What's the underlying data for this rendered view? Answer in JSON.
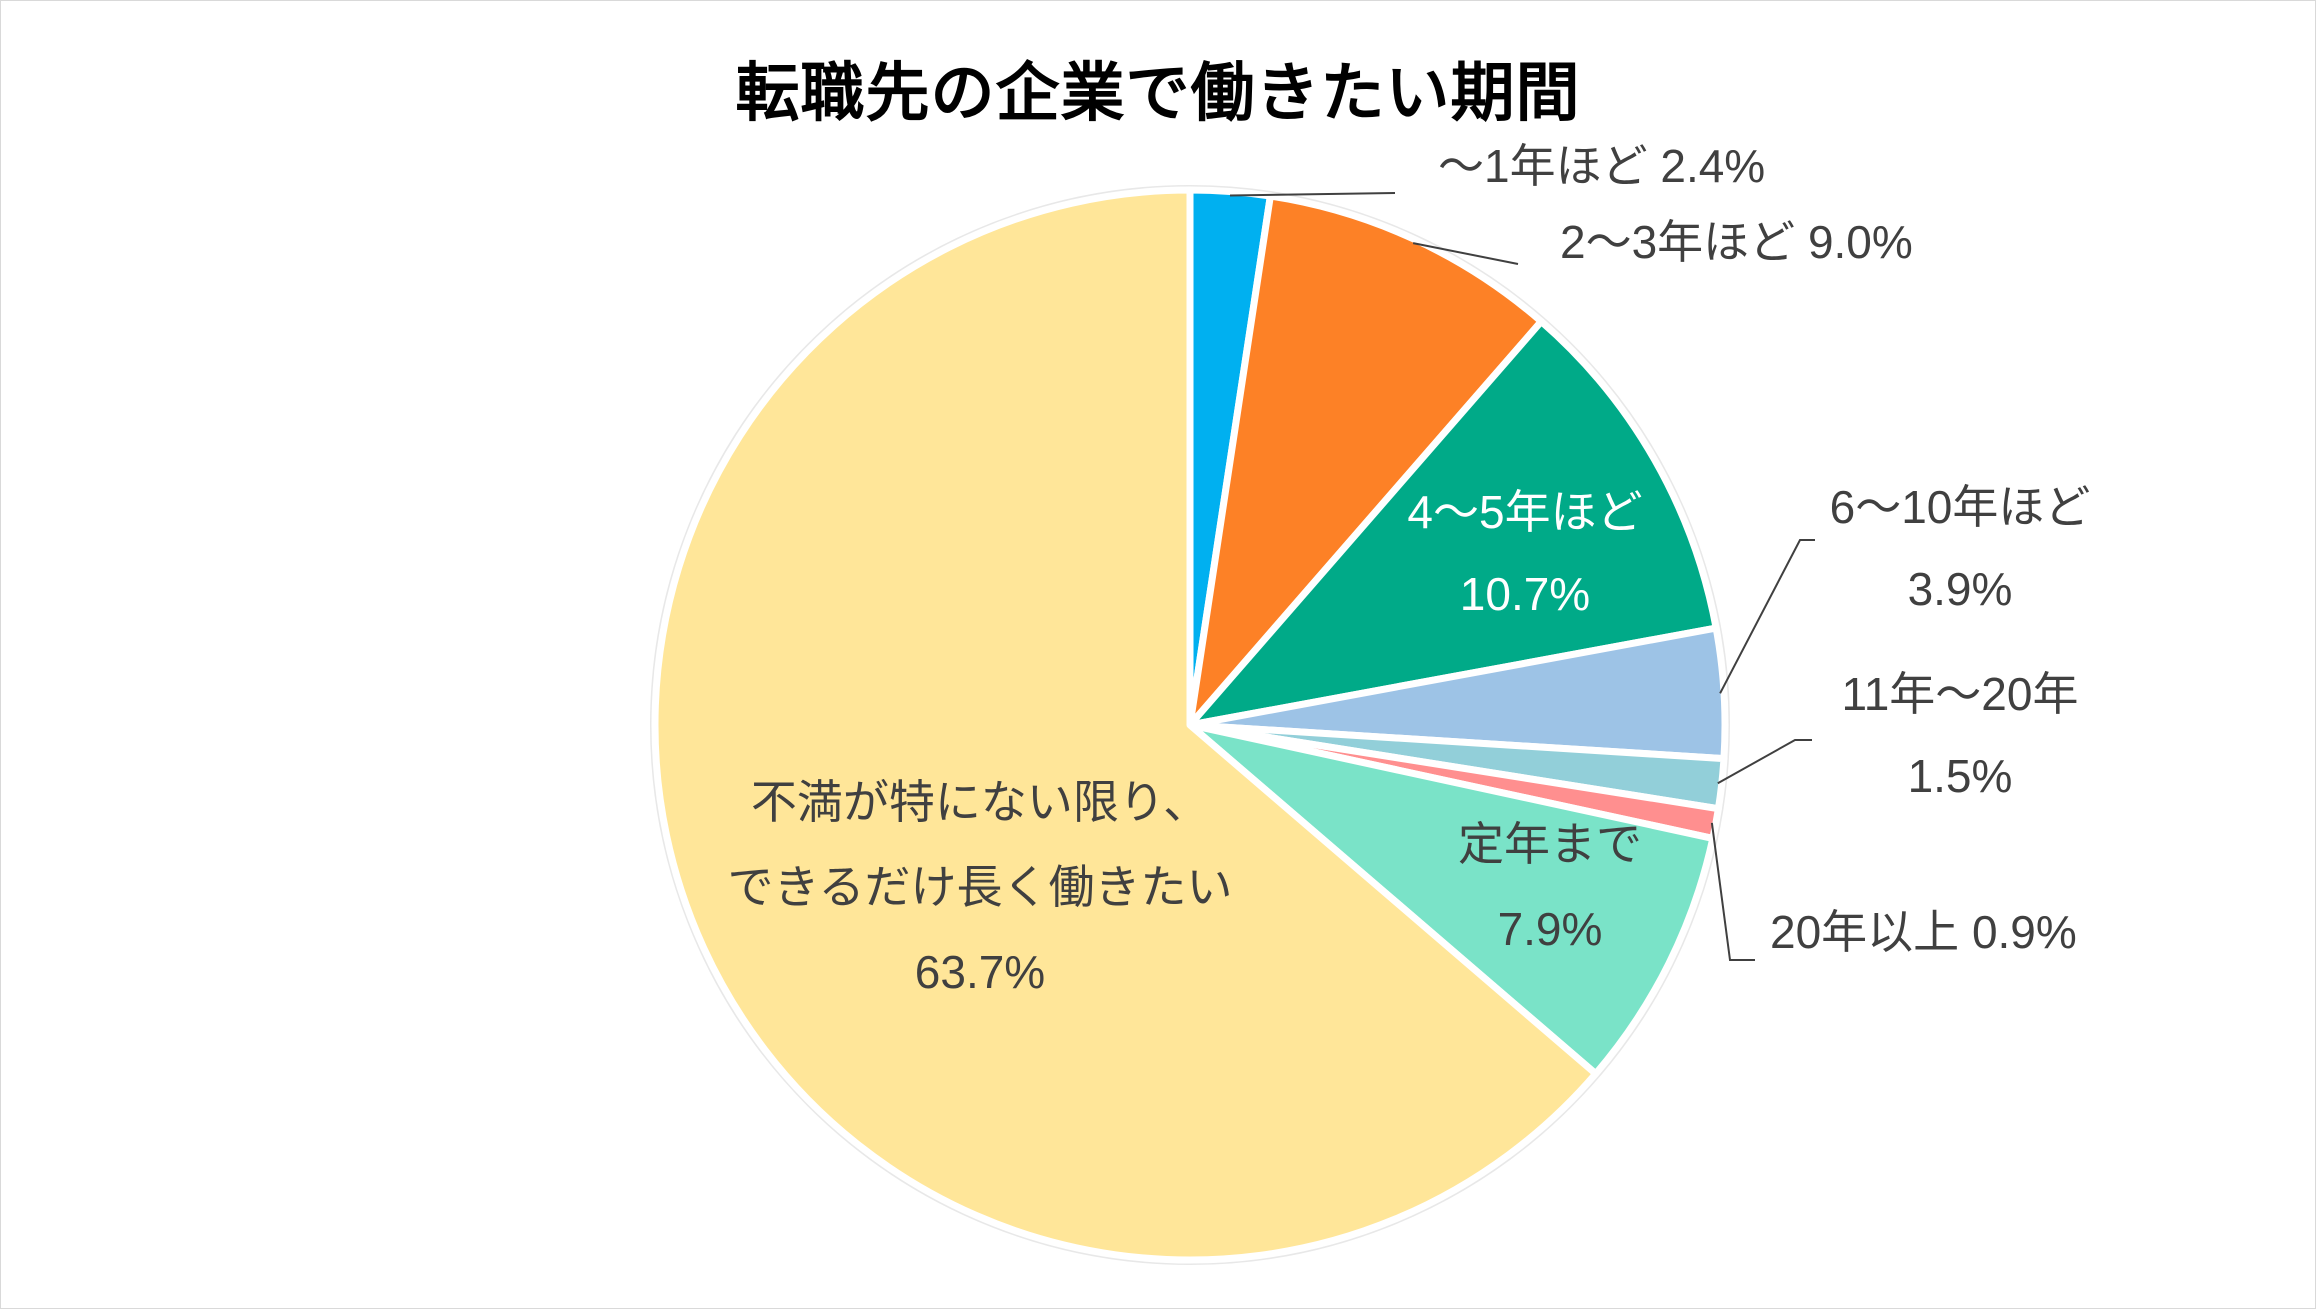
{
  "chart_data": {
    "type": "pie",
    "title": "転職先の企業で働きたい期間",
    "start": "12 o'clock",
    "direction": "clockwise",
    "slices": [
      {
        "lines": [
          "～1年ほど 2.4%"
        ],
        "value": 2.4,
        "color": "#00b0f0",
        "label_color": "#404040",
        "label_placement": "outside-leader"
      },
      {
        "lines": [
          "2～3年ほど 9.0%"
        ],
        "value": 9.0,
        "color": "#fd8126",
        "label_color": "#404040",
        "label_placement": "outside-leader"
      },
      {
        "lines": [
          "4～5年ほど",
          "10.7%"
        ],
        "value": 10.7,
        "color": "#00aa88",
        "label_color": "#ffffff",
        "label_placement": "inside"
      },
      {
        "lines": [
          "6～10年ほど",
          "3.9%"
        ],
        "value": 3.9,
        "color": "#9dc3e6",
        "label_color": "#404040",
        "label_placement": "outside-leader"
      },
      {
        "lines": [
          "11年～20年",
          "1.5%"
        ],
        "value": 1.5,
        "color": "#92cfd9",
        "label_color": "#404040",
        "label_placement": "outside-leader"
      },
      {
        "lines": [
          "20年以上 0.9%"
        ],
        "value": 0.9,
        "color": "#ff8f8f",
        "label_color": "#404040",
        "label_placement": "outside-leader"
      },
      {
        "lines": [
          "定年まで",
          "7.9%"
        ],
        "value": 7.9,
        "color": "#7ae3c8",
        "label_color": "#404040",
        "label_placement": "inside"
      },
      {
        "lines": [
          "不満が特にない限り、",
          "できるだけ長く働きたい",
          "63.7%"
        ],
        "value": 63.7,
        "color": "#ffe699",
        "label_color": "#404040",
        "label_placement": "inside"
      }
    ]
  }
}
